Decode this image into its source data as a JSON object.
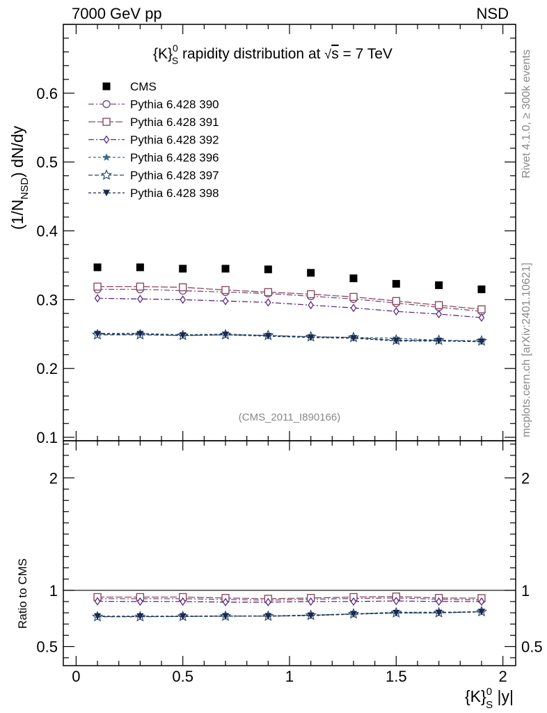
{
  "header": {
    "left": "7000 GeV pp",
    "right": "NSD"
  },
  "side_labels": {
    "rivet": "Rivet 4.1.0, ≥ 300k events",
    "mcplots": "mcplots.cern.ch [arXiv:2401.10621]"
  },
  "analysis_tag": "(CMS_2011_I890166)",
  "chart_data": {
    "type": "scatter",
    "title": "{K}",
    "title_sup": "0",
    "title_sub": "S",
    "title_rest": " rapidity distribution at ",
    "title_root": "√",
    "title_s": "s",
    "title_end": " = 7 TeV",
    "xlabel": "{K}",
    "xlabel_sup": "0",
    "xlabel_sub": "S",
    "xlabel_end": " |y|",
    "ylabel_pre": "(1/N",
    "ylabel_sub": "NSD",
    "ylabel_post": ") dN/dy",
    "ratio_ylabel": "Ratio to CMS",
    "xlim": [
      -0.06,
      2.06
    ],
    "ylim": [
      0.095,
      0.7
    ],
    "ratio_ylim": [
      0.33,
      2.33
    ],
    "x_ticks": [
      0,
      0.5,
      1,
      1.5,
      2
    ],
    "x_tick_labels": [
      "0",
      "0.5",
      "1",
      "1.5",
      "2"
    ],
    "y_ticks": [
      0.1,
      0.2,
      0.3,
      0.4,
      0.5,
      0.6
    ],
    "y_tick_labels": [
      "0.1",
      "0.2",
      "0.3",
      "0.4",
      "0.5",
      "0.6"
    ],
    "ratio_ticks": [
      0.5,
      1,
      2
    ],
    "ratio_tick_labels": [
      "0.5",
      "1",
      "2"
    ],
    "x": [
      0.1,
      0.3,
      0.5,
      0.7,
      0.9,
      1.1,
      1.3,
      1.5,
      1.7,
      1.9
    ],
    "series": [
      {
        "name": "CMS",
        "color": "#000000",
        "marker": "square-filled",
        "dash": "none",
        "values": [
          0.347,
          0.347,
          0.345,
          0.345,
          0.344,
          0.339,
          0.331,
          0.323,
          0.321,
          0.315
        ],
        "ratio": [
          1,
          1,
          1,
          1,
          1,
          1,
          1,
          1,
          1,
          1
        ]
      },
      {
        "name": "Pythia 6.428 390",
        "color": "#7a4c7e",
        "marker": "circle-open",
        "dash": "8,3,2,3",
        "values": [
          0.315,
          0.315,
          0.313,
          0.311,
          0.309,
          0.305,
          0.301,
          0.295,
          0.289,
          0.283
        ],
        "ratio": [
          0.925,
          0.925,
          0.925,
          0.918,
          0.912,
          0.92,
          0.927,
          0.932,
          0.92,
          0.915
        ]
      },
      {
        "name": "Pythia 6.428 391",
        "color": "#8a4a5e",
        "marker": "square-open",
        "dash": "10,3",
        "values": [
          0.319,
          0.319,
          0.318,
          0.314,
          0.311,
          0.308,
          0.304,
          0.298,
          0.292,
          0.286
        ],
        "ratio": [
          0.94,
          0.94,
          0.94,
          0.932,
          0.925,
          0.932,
          0.94,
          0.945,
          0.932,
          0.93
        ]
      },
      {
        "name": "Pythia 6.428 392",
        "color": "#5b2a86",
        "marker": "diamond-open",
        "dash": "8,3,2,3",
        "values": [
          0.302,
          0.301,
          0.3,
          0.298,
          0.296,
          0.292,
          0.288,
          0.283,
          0.279,
          0.274
        ],
        "ratio": [
          0.902,
          0.9,
          0.9,
          0.895,
          0.895,
          0.9,
          0.9,
          0.905,
          0.9,
          0.9
        ]
      },
      {
        "name": "Pythia 6.428 396",
        "color": "#3e6b8a",
        "marker": "star-filled",
        "dash": "4,3",
        "values": [
          0.251,
          0.251,
          0.249,
          0.25,
          0.248,
          0.246,
          0.245,
          0.244,
          0.241,
          0.239
        ],
        "ratio": [
          0.77,
          0.77,
          0.77,
          0.772,
          0.772,
          0.78,
          0.79,
          0.805,
          0.805,
          0.81
        ]
      },
      {
        "name": "Pythia 6.428 397",
        "color": "#2a4d6e",
        "marker": "star-open",
        "dash": "6,3",
        "values": [
          0.249,
          0.249,
          0.248,
          0.249,
          0.248,
          0.246,
          0.245,
          0.241,
          0.241,
          0.24
        ],
        "ratio": [
          0.765,
          0.765,
          0.768,
          0.77,
          0.77,
          0.777,
          0.79,
          0.8,
          0.8,
          0.81
        ]
      },
      {
        "name": "Pythia 6.428 398",
        "color": "#1a2850",
        "marker": "triangle-down-filled",
        "dash": "4,3",
        "values": [
          0.25,
          0.25,
          0.248,
          0.249,
          0.247,
          0.245,
          0.244,
          0.24,
          0.24,
          0.239
        ],
        "ratio": [
          0.768,
          0.768,
          0.768,
          0.77,
          0.77,
          0.775,
          0.788,
          0.798,
          0.8,
          0.808
        ]
      }
    ]
  }
}
